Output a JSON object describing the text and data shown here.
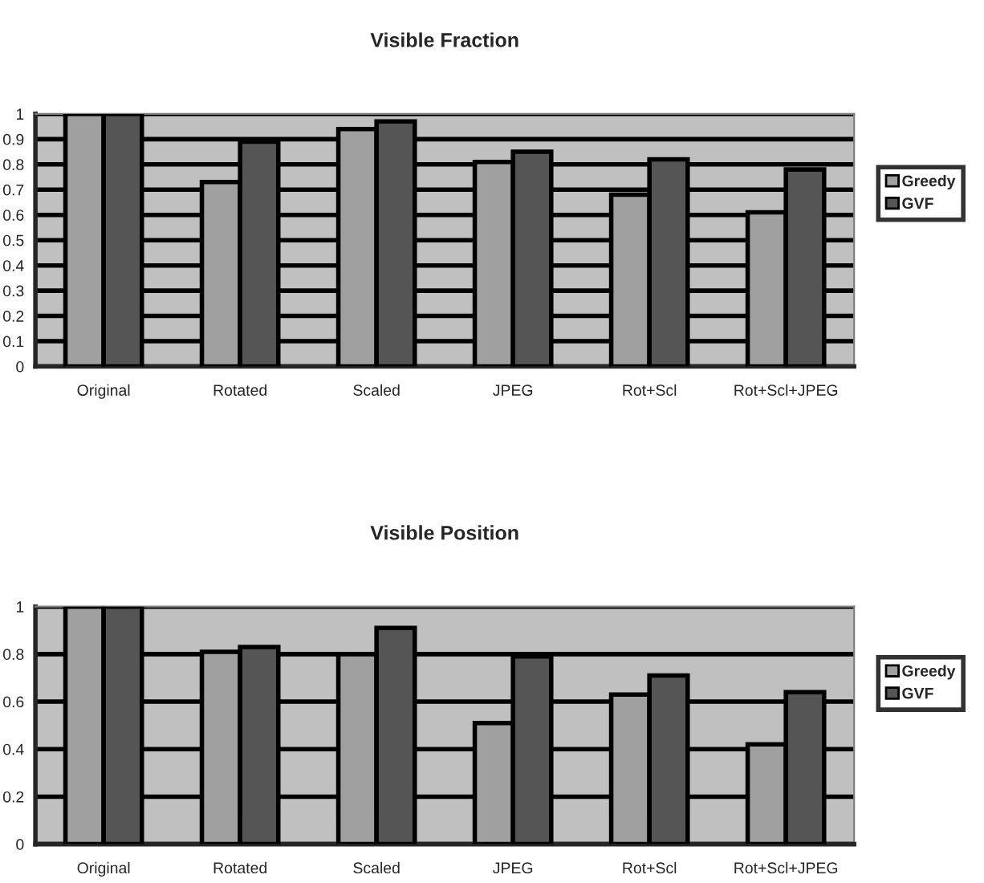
{
  "chart_data": [
    {
      "type": "bar",
      "title": "Visible Fraction",
      "categories": [
        "Original",
        "Rotated",
        "Scaled",
        "JPEG",
        "Rot+Scl",
        "Rot+Scl+JPEG"
      ],
      "series": [
        {
          "name": "Greedy",
          "color": "#a0a0a0",
          "values": [
            1,
            0.73,
            0.94,
            0.81,
            0.68,
            0.61
          ]
        },
        {
          "name": "GVF",
          "color": "#555555",
          "values": [
            1,
            0.89,
            0.97,
            0.85,
            0.82,
            0.78
          ]
        }
      ],
      "ylim": [
        0,
        1
      ],
      "yticks": [
        0,
        0.1,
        0.2,
        0.3,
        0.4,
        0.5,
        0.6,
        0.7,
        0.8,
        0.9,
        1
      ],
      "grid": "y",
      "legend": "right"
    },
    {
      "type": "bar",
      "title": "Visible Position",
      "categories": [
        "Original",
        "Rotated",
        "Scaled",
        "JPEG",
        "Rot+Scl",
        "Rot+Scl+JPEG"
      ],
      "series": [
        {
          "name": "Greedy",
          "color": "#a0a0a0",
          "values": [
            1,
            0.81,
            0.8,
            0.51,
            0.63,
            0.42
          ]
        },
        {
          "name": "GVF",
          "color": "#555555",
          "values": [
            1,
            0.83,
            0.91,
            0.79,
            0.71,
            0.64
          ]
        }
      ],
      "ylim": [
        0,
        1
      ],
      "yticks": [
        0,
        0.2,
        0.4,
        0.6,
        0.8,
        1
      ],
      "grid": "y",
      "legend": "right"
    }
  ]
}
